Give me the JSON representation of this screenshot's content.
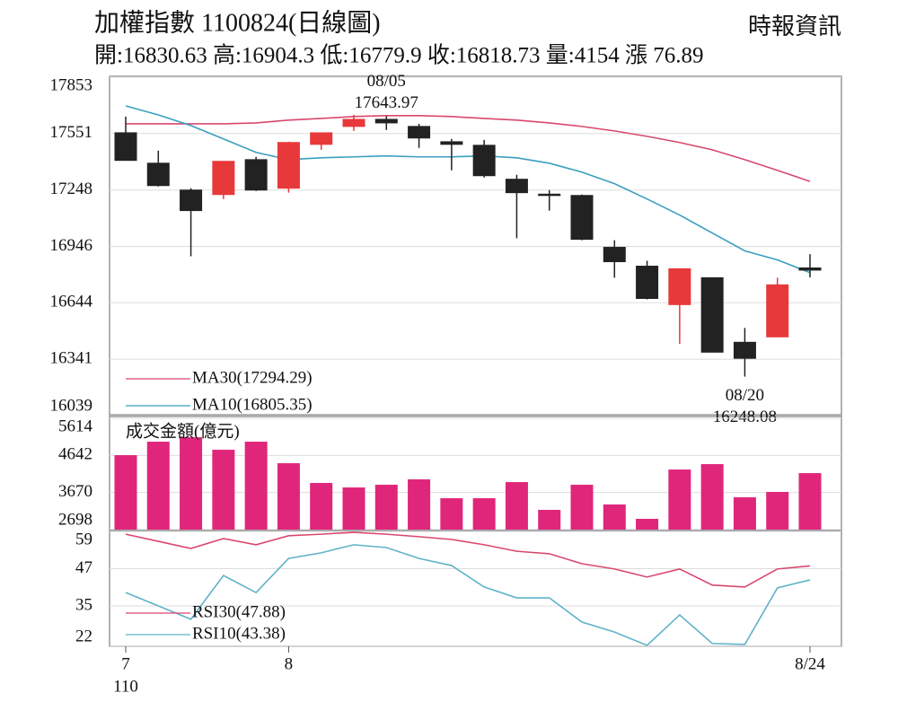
{
  "header": {
    "title": "加權指數 1100824(日線圖)",
    "source": "時報資訊",
    "summary": "開:16830.63 高:16904.3 低:16779.9 收:16818.73 量:4154 漲 76.89"
  },
  "chart_data": [
    {
      "type": "candlestick",
      "up_color": "#e8393a",
      "down_color": "#222222",
      "open": [
        17555,
        17392,
        17248,
        17224,
        17411,
        17258,
        17493,
        17589,
        17627,
        17589,
        17507,
        17488,
        17306,
        17226,
        17219,
        16941,
        16840,
        16634,
        16778,
        16432,
        16461,
        16830.63
      ],
      "high": [
        17642,
        17459,
        17258,
        17402,
        17426,
        17507,
        17555,
        17651,
        17643.97,
        17603,
        17522,
        17517,
        17330,
        17248,
        17224,
        16979,
        16869,
        16826,
        16778,
        16509,
        16778,
        16904.3
      ],
      "low": [
        17407,
        17267,
        16893,
        17200,
        17243,
        17234,
        17464,
        17565,
        17570,
        17474,
        17354,
        17315,
        16990,
        17138,
        16979,
        16778,
        16662,
        16423,
        16379,
        16248.08,
        16461,
        16779.9
      ],
      "close": [
        17407,
        17272,
        17138,
        17402,
        17248,
        17503,
        17555,
        17627,
        17608,
        17527,
        17493,
        17325,
        17234,
        17224,
        16984,
        16864,
        16667,
        16826,
        16379,
        16346,
        16740,
        16818.73
      ],
      "series": [
        {
          "name": "MA30(17294.29)",
          "color": "#d9486e",
          "values": [
            17603,
            17603,
            17603,
            17603,
            17608,
            17623,
            17632,
            17642,
            17647,
            17647,
            17642,
            17632,
            17623,
            17608,
            17589,
            17565,
            17536,
            17503,
            17464,
            17411,
            17354,
            17294.29
          ]
        },
        {
          "name": "MA10(16805.35)",
          "color": "#3a9fc0",
          "values": [
            17699,
            17651,
            17594,
            17522,
            17450,
            17411,
            17421,
            17426,
            17431,
            17426,
            17426,
            17431,
            17421,
            17392,
            17344,
            17282,
            17200,
            17114,
            17018,
            16922,
            16874,
            16805.35
          ]
        }
      ],
      "annotations": [
        {
          "date": "08/05",
          "value": 17643.97
        },
        {
          "date": "08/20",
          "value": 16248.08
        }
      ],
      "ylim": [
        16039,
        17853
      ],
      "yticks": [
        16039,
        16341,
        16644,
        16946,
        17248,
        17551,
        17853
      ],
      "grid": true
    },
    {
      "type": "bar",
      "title": "成交金額(億元)",
      "color": "#e0267b",
      "values": [
        4648,
        5001,
        5118,
        4790,
        5001,
        4437,
        3920,
        3802,
        3873,
        4014,
        3520,
        3520,
        3943,
        3215,
        3873,
        3356,
        2980,
        4272,
        4413,
        3544,
        3685,
        4178
      ],
      "ylim": [
        2698,
        5614
      ],
      "yticks": [
        2698,
        3670,
        4642,
        5614
      ],
      "grid": true
    },
    {
      "type": "line",
      "categories": [
        "7",
        null,
        null,
        null,
        null,
        "8",
        null,
        null,
        null,
        null,
        null,
        null,
        null,
        null,
        null,
        null,
        null,
        null,
        null,
        null,
        null,
        "8/24"
      ],
      "x_sublabel": "110",
      "series": [
        {
          "name": "RSI30(47.88)",
          "color": "#d9486e",
          "values": [
            58.1,
            55.8,
            53.5,
            56.7,
            54.7,
            57.6,
            58.1,
            58.7,
            58.1,
            57.3,
            56.4,
            54.7,
            52.6,
            51.8,
            48.6,
            46.9,
            44.3,
            46.9,
            41.7,
            41.1,
            46.9,
            47.88
          ]
        },
        {
          "name": "RSI10(43.38)",
          "color": "#5fb2c8",
          "values": [
            39.3,
            35.0,
            30.7,
            44.8,
            39.3,
            50.3,
            52.1,
            54.7,
            53.8,
            50.3,
            48.0,
            41.1,
            37.6,
            37.6,
            29.8,
            26.6,
            22.3,
            32.1,
            22.9,
            22.6,
            40.8,
            43.38
          ]
        }
      ],
      "ylim": [
        22,
        59
      ],
      "yticks": [
        22,
        35,
        47,
        59
      ],
      "grid": true
    }
  ]
}
